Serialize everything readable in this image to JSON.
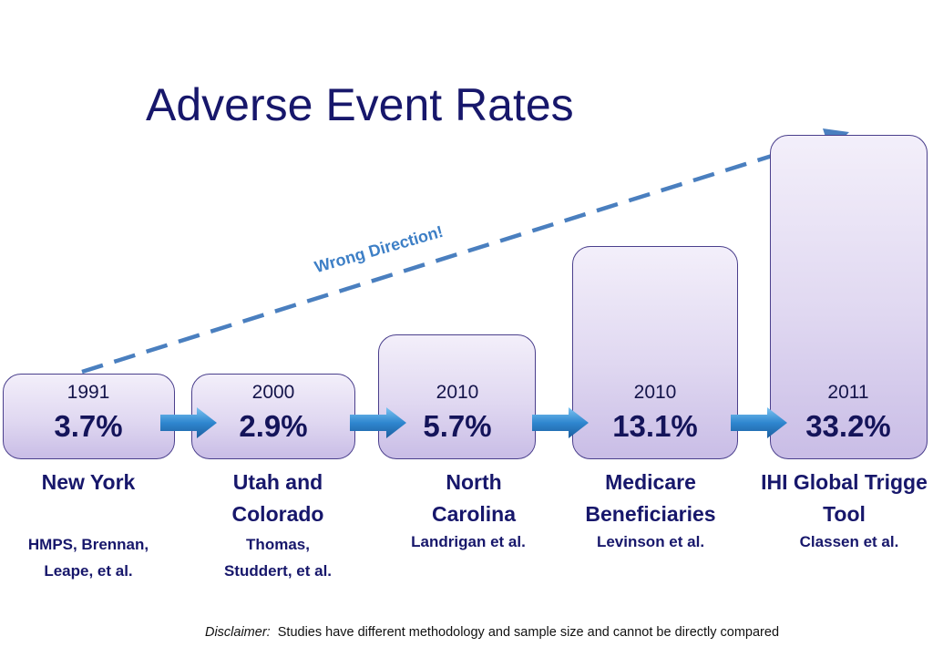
{
  "title": "Adverse Event Rates",
  "trend_label": "Wrong Direction!",
  "studies": [
    {
      "year": "1991",
      "rate": "3.7%",
      "label": "New York",
      "authors": "HMPS, Brennan,\nLeape, et al."
    },
    {
      "year": "2000",
      "rate": "2.9%",
      "label": "Utah and\nColorado",
      "authors": "Thomas,\nStuddert, et al."
    },
    {
      "year": "2010",
      "rate": "5.7%",
      "label": "North\nCarolina",
      "authors": "Landrigan et al."
    },
    {
      "year": "2010",
      "rate": "13.1%",
      "label": "Medicare\nBeneficiaries",
      "authors": "Levinson et al."
    },
    {
      "year": "2011",
      "rate": "33.2%",
      "label": "IHI Global Trigge\nTool",
      "authors": "Classen et al."
    }
  ],
  "disclaimer": {
    "prefix": "Disclaimer:",
    "text": "Studies have different methodology and sample size and cannot be directly compared"
  },
  "colors": {
    "title": "#17176b",
    "box_border": "#4a3f8c",
    "box_fill": "#e0d8f1",
    "flow_arrow": "#2f86cf",
    "trend_arrow": "#4a7fbf"
  }
}
